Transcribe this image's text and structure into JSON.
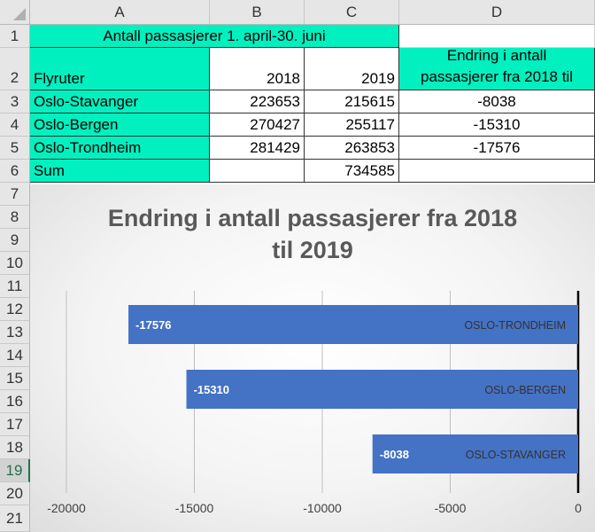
{
  "columns": [
    "A",
    "B",
    "C",
    "D"
  ],
  "rows": [
    "1",
    "2",
    "3",
    "4",
    "5",
    "6",
    "7",
    "8",
    "9",
    "10",
    "11",
    "12",
    "13",
    "14",
    "15",
    "16",
    "17",
    "18",
    "19",
    "20",
    "21"
  ],
  "table": {
    "title": "Antall passasjerer 1. april-30. juni",
    "header": {
      "route": "Flyruter",
      "y2018": "2018",
      "y2019": "2019",
      "change_line1": "Endring i antall",
      "change_line2": "passasjerer fra 2018 til"
    },
    "data": [
      {
        "route": "Oslo-Stavanger",
        "y2018": "223653",
        "y2019": "215615",
        "change": "-8038"
      },
      {
        "route": "Oslo-Bergen",
        "y2018": "270427",
        "y2019": "255117",
        "change": "-15310"
      },
      {
        "route": "Oslo-Trondheim",
        "y2018": "281429",
        "y2019": "263853",
        "change": "-17576"
      }
    ],
    "sum": {
      "label": "Sum",
      "y2018": "",
      "y2019": "734585",
      "change": ""
    }
  },
  "chart_data": {
    "type": "bar",
    "orientation": "horizontal",
    "title_lines": [
      "Endring i antall passasjerer fra 2018",
      "til 2019"
    ],
    "categories": [
      "OSLO-TRONDHEIM",
      "OSLO-BERGEN",
      "OSLO-STAVANGER"
    ],
    "values": [
      -17576,
      -15310,
      -8038
    ],
    "data_labels": [
      "-17576",
      "-15310",
      "-8038"
    ],
    "xlim": [
      -20000,
      0
    ],
    "ticks": [
      -20000,
      -15000,
      -10000,
      -5000,
      0
    ],
    "tick_labels": [
      "-20000",
      "-15000",
      "-10000",
      "-5000",
      "0"
    ],
    "bar_color": "#4472c4",
    "grid": true
  },
  "colors": {
    "highlight": "#00f0c0"
  }
}
